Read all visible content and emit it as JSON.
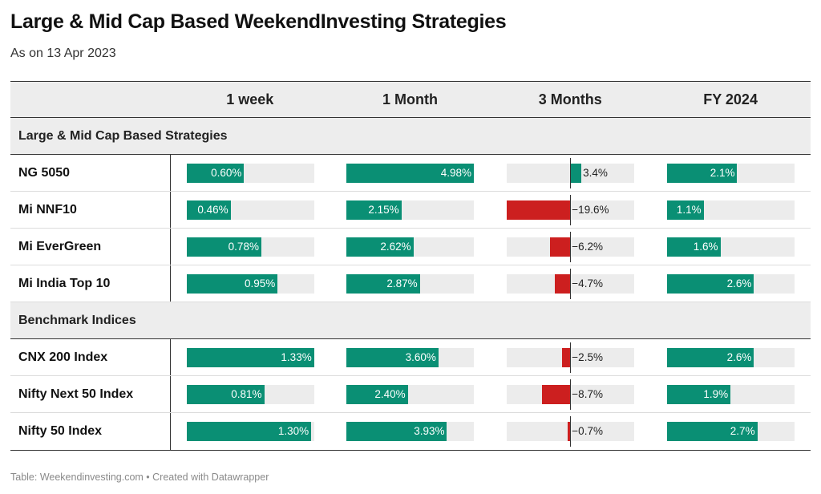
{
  "title": "Large & Mid Cap Based WeekendInvesting Strategies",
  "subtitle": "As on 13 Apr 2023",
  "footer": "Table: Weekendinvesting.com • Created with Datawrapper",
  "colors": {
    "positive": "#0a8f74",
    "negative": "#cc1f1f",
    "track": "#ececec",
    "header_bg": "#ededed"
  },
  "chart_data": {
    "type": "table",
    "columns": [
      "",
      "1 week",
      "1 Month",
      "3 Months",
      "FY 2024"
    ],
    "column_ranges": [
      [
        0,
        1.33
      ],
      [
        0,
        4.98
      ],
      [
        -19.6,
        19.6
      ],
      [
        0,
        3.8
      ]
    ],
    "groups": [
      {
        "label": "Large & Mid Cap Based Strategies",
        "rows": [
          {
            "name": "NG 5050",
            "values": [
              0.6,
              4.98,
              3.4,
              2.1
            ],
            "labels": [
              "0.60%",
              "4.98%",
              "3.4%",
              "2.1%"
            ]
          },
          {
            "name": "Mi NNF10",
            "values": [
              0.46,
              2.15,
              -19.6,
              1.1
            ],
            "labels": [
              "0.46%",
              "2.15%",
              "−19.6%",
              "1.1%"
            ]
          },
          {
            "name": "Mi EverGreen",
            "values": [
              0.78,
              2.62,
              -6.2,
              1.6
            ],
            "labels": [
              "0.78%",
              "2.62%",
              "−6.2%",
              "1.6%"
            ]
          },
          {
            "name": "Mi India Top 10",
            "values": [
              0.95,
              2.87,
              -4.7,
              2.6
            ],
            "labels": [
              "0.95%",
              "2.87%",
              "−4.7%",
              "2.6%"
            ]
          }
        ]
      },
      {
        "label": "Benchmark Indices",
        "rows": [
          {
            "name": "CNX 200 Index",
            "values": [
              1.33,
              3.6,
              -2.5,
              2.6
            ],
            "labels": [
              "1.33%",
              "3.60%",
              "−2.5%",
              "2.6%"
            ]
          },
          {
            "name": "Nifty Next 50 Index",
            "values": [
              0.81,
              2.4,
              -8.7,
              1.9
            ],
            "labels": [
              "0.81%",
              "2.40%",
              "−8.7%",
              "1.9%"
            ]
          },
          {
            "name": "Nifty 50 Index",
            "values": [
              1.3,
              3.93,
              -0.7,
              2.7
            ],
            "labels": [
              "1.30%",
              "3.93%",
              "−0.7%",
              "2.7%"
            ]
          }
        ]
      }
    ]
  }
}
